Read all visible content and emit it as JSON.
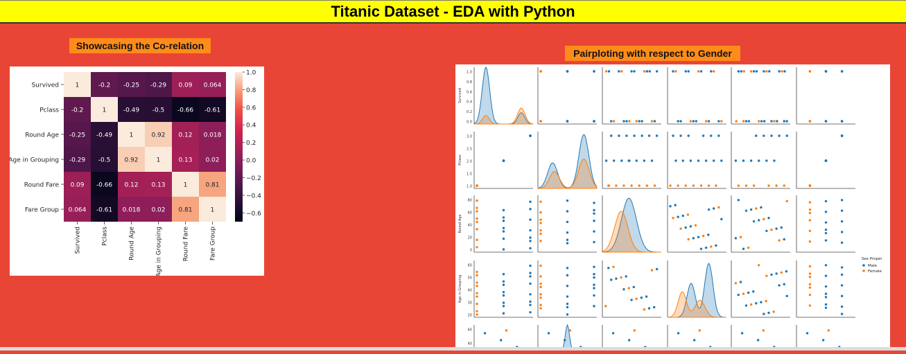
{
  "page": {
    "title": "Titanic Dataset - EDA with Python",
    "heatmap_caption": "Showcasing the Co-relation",
    "pairplot_caption": "Pairploting with respect to Gender"
  },
  "colors": {
    "background": "#E94536",
    "header": "#FFFF00",
    "caption": "#FF8C1A",
    "male": "#1F77B4",
    "female": "#FF7F0E"
  },
  "chart_data": [
    {
      "type": "heatmap",
      "title": "",
      "labels": [
        "Survived",
        "Pclass",
        "Round Age",
        "Age in Grouping",
        "Round Fare",
        "Fare Group"
      ],
      "values": [
        [
          1,
          -0.2,
          -0.25,
          -0.29,
          0.09,
          0.064
        ],
        [
          -0.2,
          1,
          -0.49,
          -0.5,
          -0.66,
          -0.61
        ],
        [
          -0.25,
          -0.49,
          1,
          0.92,
          0.12,
          0.018
        ],
        [
          -0.29,
          -0.5,
          0.92,
          1,
          0.13,
          0.02
        ],
        [
          0.09,
          -0.66,
          0.12,
          0.13,
          1,
          0.81
        ],
        [
          0.064,
          -0.61,
          0.018,
          0.02,
          0.81,
          1
        ]
      ],
      "colorbar": {
        "min": -0.7,
        "max": 1.0,
        "ticks": [
          1.0,
          0.8,
          0.6,
          0.4,
          0.2,
          0.0,
          -0.2,
          -0.4,
          -0.6
        ],
        "tick_labels": [
          "1.0",
          "0.8",
          "0.6",
          "0.4",
          "0.2",
          "0.0",
          "−0.2",
          "−0.4",
          "−0.6"
        ]
      }
    },
    {
      "type": "scatter",
      "title": "",
      "variables": [
        "Survived",
        "Pclass",
        "Round Age",
        "Age in Grouping"
      ],
      "legend": {
        "title": "Sex Proper",
        "entries": [
          "Male",
          "Female"
        ],
        "placement": "right"
      },
      "axis_ticks": {
        "Survived": [
          "1.0",
          "0.8",
          "0.6",
          "0.4",
          "0.2",
          "0.0"
        ],
        "Pclass": [
          "3.0",
          "2.5",
          "2.0",
          "1.5",
          "1.0"
        ],
        "Round Age": [
          "80",
          "60",
          "40",
          "20",
          "0"
        ],
        "Age in Grouping": [
          "60",
          "50",
          "40",
          "30",
          "20"
        ],
        "bottom_row": [
          "60",
          "40"
        ]
      }
    }
  ]
}
